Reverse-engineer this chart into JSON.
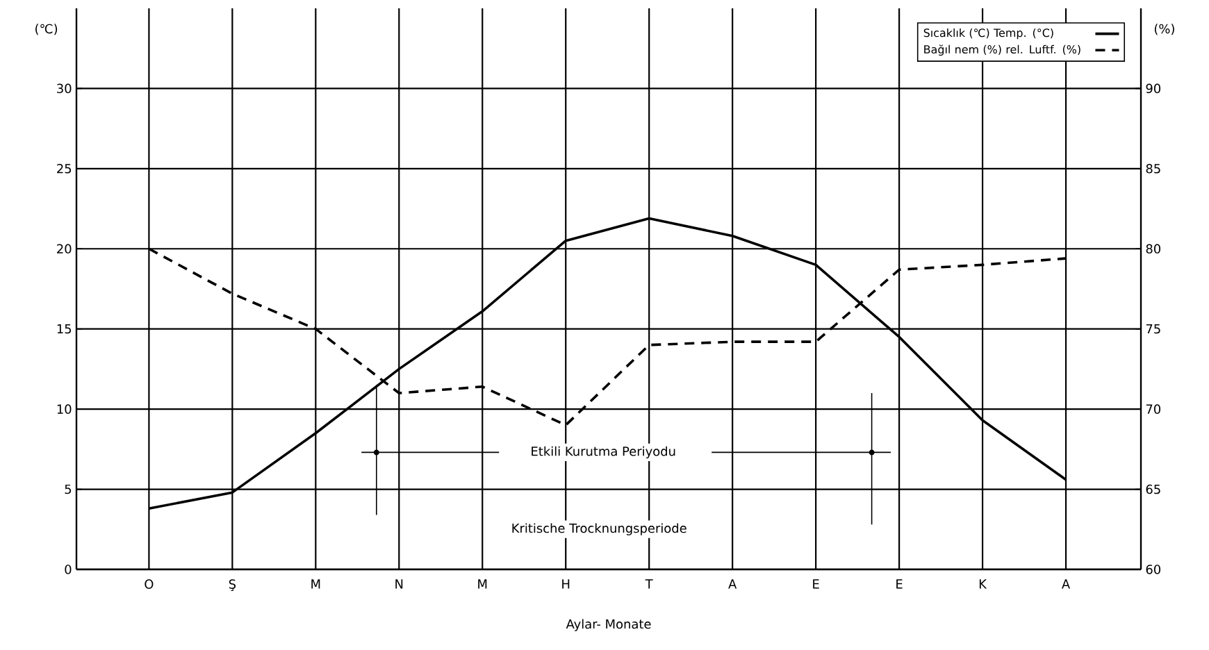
{
  "chart_data": {
    "type": "line",
    "categories": [
      "O",
      "Ş",
      "M",
      "N",
      "M",
      "H",
      "T",
      "A",
      "E",
      "E",
      "K",
      "A"
    ],
    "series": [
      {
        "name": "Sıcaklık (℃) Temp. (°C)",
        "color": "#000000",
        "line_style": "solid",
        "values": [
          3.8,
          4.8,
          8.5,
          12.5,
          16.1,
          20.5,
          21.9,
          20.8,
          19.0,
          14.5,
          9.3,
          5.6
        ]
      },
      {
        "name": "Bağıl nem (%) rel. Luftf. (%)",
        "color": "#000000",
        "line_style": "dashed",
        "axis": "y2",
        "values": [
          80,
          77.2,
          75,
          71,
          71.4,
          69.0,
          74.0,
          74.2,
          74.2,
          78.7,
          79.0,
          79.4
        ]
      }
    ],
    "xlabel": "Aylar- Monate",
    "ylabel": "(℃)",
    "y2label": "(%)",
    "ylim": [
      0,
      35
    ],
    "yticks": [
      0,
      5,
      10,
      15,
      20,
      25,
      30
    ],
    "y2lim": [
      60,
      95
    ],
    "y2ticks": [
      60,
      65,
      70,
      75,
      80,
      85,
      90
    ],
    "grid": true,
    "legend": "top right",
    "marker": "none",
    "annotations": [
      "Etkili Kurutma Periyodu",
      "Kritische Trocknungsperiode"
    ]
  }
}
